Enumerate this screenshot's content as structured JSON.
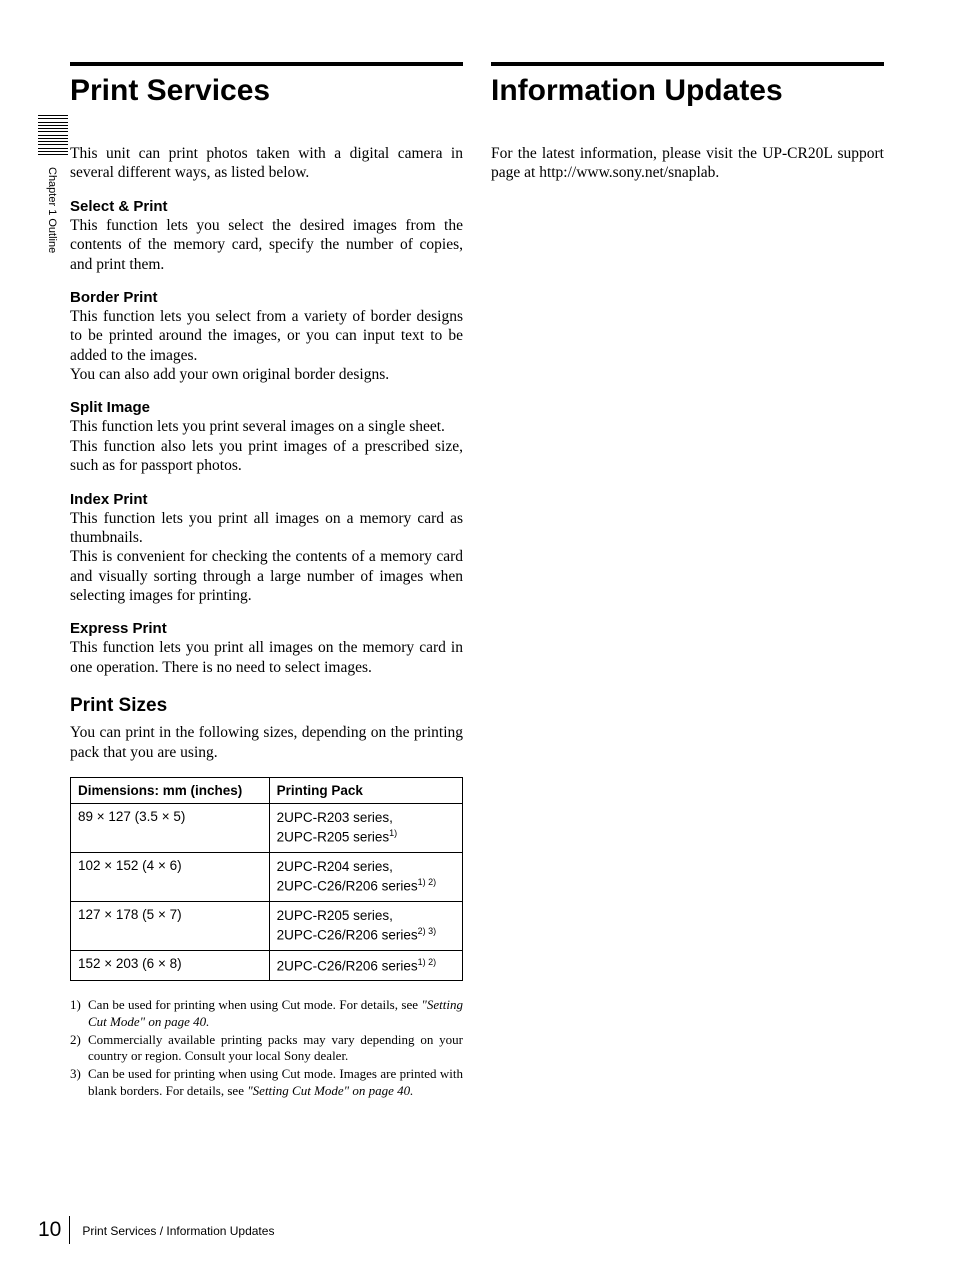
{
  "tab": {
    "label": "Chapter 1  Outline"
  },
  "left": {
    "title": "Print Services",
    "intro": "This unit can print photos taken with a digital camera in several different ways, as listed below.",
    "blocks": [
      {
        "h": "Select & Print",
        "p": "This function lets you select the desired images from the contents of the memory card, specify the number of copies, and print them."
      },
      {
        "h": "Border Print",
        "p": "This function lets you select from a variety of border designs to be printed around the images, or you can input text to be added to the images.\nYou can also add your own original border designs."
      },
      {
        "h": "Split Image",
        "p": "This function lets you print several images on a single sheet.\nThis function also lets you print images of a prescribed size, such as for passport photos."
      },
      {
        "h": "Index Print",
        "p": "This function lets you print all images on a memory card as thumbnails.\nThis is convenient for checking the contents of a memory card and visually sorting through a large number of images when selecting images for printing."
      },
      {
        "h": "Express Print",
        "p": "This function lets you print all images on the memory card in one operation. There is no need to select images."
      }
    ],
    "sizes": {
      "heading": "Print Sizes",
      "intro": "You can print in the following sizes, depending on the printing pack that you are using.",
      "columns": [
        "Dimensions: mm (inches)",
        "Printing Pack"
      ],
      "rows": [
        {
          "dim": "89 × 127 (3.5 × 5)",
          "packs": [
            {
              "text": "2UPC-R203 series,",
              "sup": ""
            },
            {
              "text": "2UPC-R205 series",
              "sup": "1)"
            }
          ]
        },
        {
          "dim": "102 × 152 (4 × 6)",
          "packs": [
            {
              "text": "2UPC-R204 series,",
              "sup": ""
            },
            {
              "text": "2UPC-C26/R206 series",
              "sup": "1) 2)"
            }
          ]
        },
        {
          "dim": "127 × 178 (5 × 7)",
          "packs": [
            {
              "text": "2UPC-R205 series,",
              "sup": ""
            },
            {
              "text": "2UPC-C26/R206 series",
              "sup": "2) 3)"
            }
          ]
        },
        {
          "dim": "152 × 203 (6 × 8)",
          "packs": [
            {
              "text": "2UPC-C26/R206 series",
              "sup": "1) 2)"
            }
          ]
        }
      ],
      "footnotes": [
        {
          "num": "1)",
          "text": "Can be used for printing when using Cut mode. For details, see ",
          "ref": "\"Setting Cut Mode\" on page 40."
        },
        {
          "num": "2)",
          "text": "Commercially available printing packs may vary depending on your country or region. Consult your local Sony dealer.",
          "ref": ""
        },
        {
          "num": "3)",
          "text": "Can be used for printing when using Cut mode. Images are printed with blank borders. For details, see ",
          "ref": "\"Setting Cut Mode\" on page 40."
        }
      ]
    }
  },
  "right": {
    "title": "Information Updates",
    "body": "For the latest information, please visit the UP-CR20L support page at http://www.sony.net/snaplab."
  },
  "footer": {
    "page": "10",
    "crumb": "Print Services / Information Updates"
  }
}
